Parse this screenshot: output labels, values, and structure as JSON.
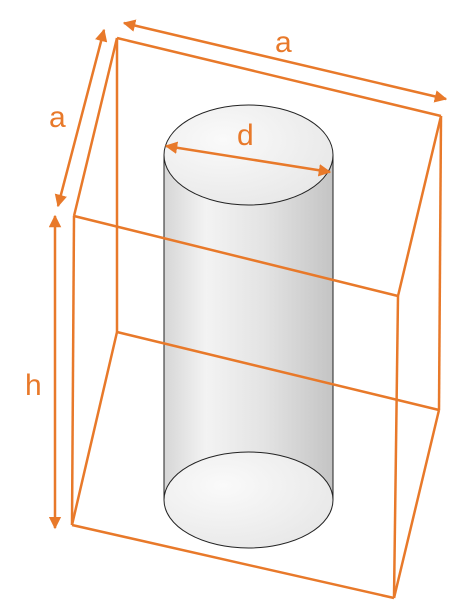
{
  "colors": {
    "edge": "#E8792A",
    "cylinder_stroke": "#222222",
    "cylinder_fill_light": "#f4f4f4",
    "cylinder_fill_dark": "#c9c9c9",
    "ellipse_fill": "#f2f2f2",
    "background": "#ffffff"
  },
  "labels": {
    "top_side": "a",
    "left_side": "a",
    "diameter": "d",
    "height": "h"
  }
}
